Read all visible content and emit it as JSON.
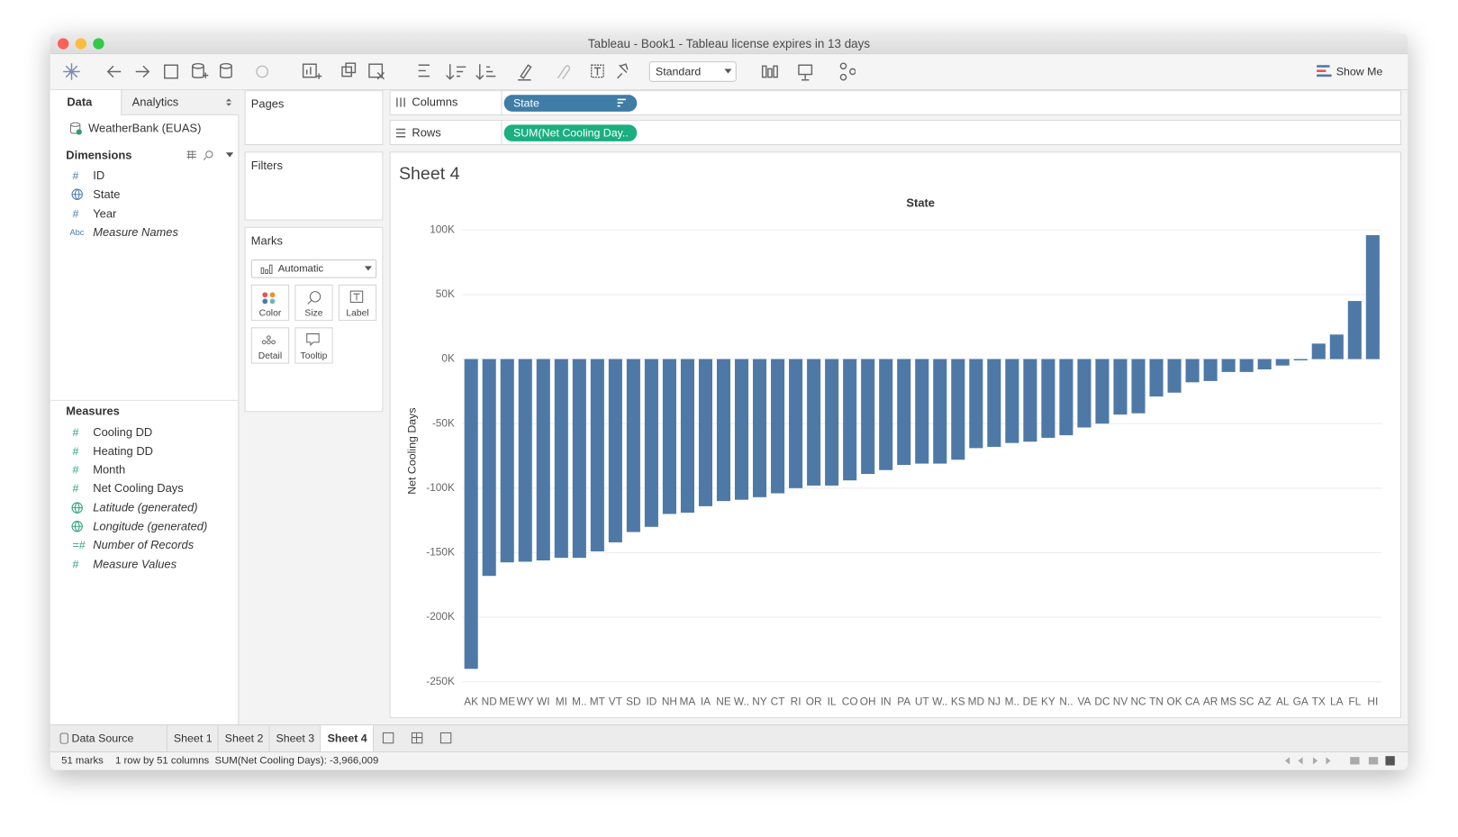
{
  "window": {
    "title": "Tableau - Book1 - Tableau license expires in 13 days"
  },
  "toolbar": {
    "fit": "Standard",
    "show_me": "Show Me"
  },
  "data_pane": {
    "tabs": [
      "Data",
      "Analytics"
    ],
    "source": "WeatherBank (EUAS)",
    "dimensions_header": "Dimensions",
    "dimensions": [
      {
        "icon": "#",
        "name": "ID"
      },
      {
        "icon": null,
        "name": "State"
      },
      {
        "icon": "#",
        "name": "Year"
      },
      {
        "icon": "Abc",
        "name": "Measure Names",
        "italic": true
      }
    ],
    "measures_header": "Measures",
    "measures": [
      {
        "icon": "#",
        "name": "Cooling DD"
      },
      {
        "icon": "#",
        "name": "Heating DD"
      },
      {
        "icon": "#",
        "name": "Month"
      },
      {
        "icon": "#",
        "name": "Net Cooling Days"
      },
      {
        "icon": null,
        "name": "Latitude (generated)",
        "italic": true
      },
      {
        "icon": null,
        "name": "Longitude (generated)",
        "italic": true
      },
      {
        "icon": "=#",
        "name": "Number of Records",
        "italic": true
      },
      {
        "icon": "#",
        "name": "Measure Values",
        "italic": true
      }
    ]
  },
  "cards": {
    "pages": "Pages",
    "filters": "Filters",
    "marks": "Marks",
    "mark_type": "Automatic",
    "mark_buttons": [
      "Color",
      "Size",
      "Label",
      "Detail",
      "Tooltip"
    ]
  },
  "shelves": {
    "columns_label": "Columns",
    "columns_pill": "State",
    "rows_label": "Rows",
    "rows_pill": "SUM(Net Cooling Day.."
  },
  "chart_data": {
    "type": "bar",
    "title": "Sheet 4",
    "x_label": "State",
    "y_label": "Net Cooling Days",
    "color": "#4e79a7",
    "grid": true,
    "categories": [
      "AK",
      "ND",
      "ME",
      "WY",
      "WI",
      "MI",
      "M..",
      "MT",
      "VT",
      "SD",
      "ID",
      "NH",
      "MA",
      "IA",
      "NE",
      "W..",
      "NY",
      "CT",
      "RI",
      "OR",
      "IL",
      "CO",
      "OH",
      "IN",
      "PA",
      "UT",
      "W..",
      "KS",
      "MD",
      "NJ",
      "M..",
      "DE",
      "KY",
      "N..",
      "VA",
      "DC",
      "NV",
      "NC",
      "TN",
      "OK",
      "CA",
      "AR",
      "MS",
      "SC",
      "AZ",
      "AL",
      "GA",
      "TX",
      "LA",
      "FL",
      "HI"
    ],
    "values": [
      -240000,
      -168000,
      -157500,
      -157000,
      -156000,
      -154000,
      -154000,
      -149000,
      -142000,
      -134000,
      -130000,
      -120000,
      -119000,
      -114000,
      -110000,
      -109000,
      -107000,
      -104000,
      -100000,
      -98000,
      -98000,
      -94000,
      -89000,
      -86000,
      -82000,
      -81000,
      -81000,
      -78000,
      -69000,
      -68000,
      -65000,
      -64000,
      -61000,
      -59000,
      -53000,
      -50000,
      -43000,
      -42000,
      -29000,
      -26000,
      -18000,
      -17000,
      -10000,
      -10000,
      -8000,
      -5000,
      -1000,
      12000,
      19000,
      45000,
      96000
    ],
    "ylim": [
      -255000,
      106000
    ],
    "yticks": [
      {
        "value": -250000,
        "label": "-250K"
      },
      {
        "value": -200000,
        "label": "-200K"
      },
      {
        "value": -150000,
        "label": "-150K"
      },
      {
        "value": -100000,
        "label": "-100K"
      },
      {
        "value": -50000,
        "label": "-50K"
      },
      {
        "value": 0,
        "label": "0K"
      },
      {
        "value": 50000,
        "label": "50K"
      },
      {
        "value": 100000,
        "label": "100K"
      }
    ]
  },
  "sheet_tabs": {
    "items": [
      "Data Source",
      "Sheet 1",
      "Sheet 2",
      "Sheet 3",
      "Sheet 4"
    ],
    "active": 4
  },
  "status": {
    "marks": "51 marks",
    "layout": "1 row by 51 columns",
    "sum": "SUM(Net Cooling Days): -3,966,009"
  }
}
